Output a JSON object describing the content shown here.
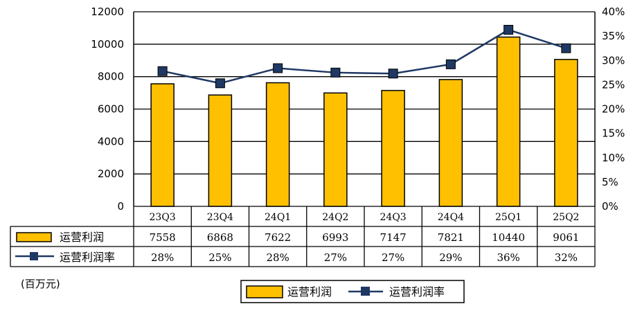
{
  "chart_data": {
    "type": "bar",
    "categories": [
      "23Q3",
      "23Q4",
      "24Q1",
      "24Q2",
      "24Q3",
      "24Q4",
      "25Q1",
      "25Q2"
    ],
    "series": [
      {
        "name": "运营利润",
        "type": "bar",
        "axis": "left",
        "values": [
          7558,
          6868,
          7622,
          6993,
          7147,
          7821,
          10440,
          9061
        ],
        "color": "#FFC000"
      },
      {
        "name": "运营利润率",
        "type": "line",
        "axis": "right",
        "values": [
          0.28,
          0.25,
          0.28,
          0.27,
          0.27,
          0.29,
          0.36,
          0.32
        ],
        "plotted_values": [
          0.278,
          0.253,
          0.284,
          0.275,
          0.273,
          0.292,
          0.363,
          0.325
        ],
        "color": "#1F3864"
      }
    ],
    "y_left": {
      "ylim": [
        0,
        12000
      ],
      "ticks": [
        "0",
        "2000",
        "4000",
        "6000",
        "8000",
        "10000",
        "12000"
      ]
    },
    "y_right": {
      "ylim": [
        0,
        0.4
      ],
      "ticks": [
        "0%",
        "5%",
        "10%",
        "15%",
        "20%",
        "25%",
        "30%",
        "35%",
        "40%"
      ]
    },
    "table_rows": [
      {
        "label": "运营利润",
        "cells": [
          "7558",
          "6868",
          "7622",
          "6993",
          "7147",
          "7821",
          "10440",
          "9061"
        ]
      },
      {
        "label": "运营利润率",
        "cells": [
          "28%",
          "25%",
          "28%",
          "27%",
          "27%",
          "29%",
          "36%",
          "32%"
        ]
      }
    ],
    "unit_note": "(百万元)",
    "legend": [
      "运营利润",
      "运营利润率"
    ],
    "legend_position": "bottom",
    "grid": true
  }
}
